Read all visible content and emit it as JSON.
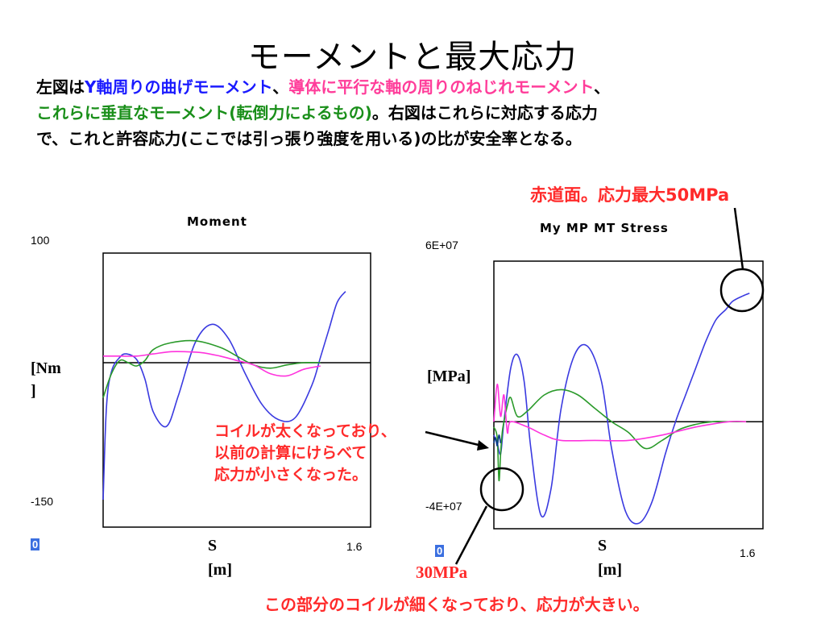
{
  "slide": {
    "title": "モーメントと最大応力",
    "intro": {
      "p1_a": "左図は",
      "p1_b": "Y軸周りの曲げモーメント",
      "p1_c": "、",
      "p1_d": "導体に平行な軸の周りのねじれモーメント",
      "p1_e": "、",
      "p2_a": "これらに垂直なモーメント(転倒力によるもの)",
      "p2_b": "。右図はこれらに対応する応力",
      "p3": "で、これと許容応力(ここでは引っ張り強度を用いる)の比が安全率となる。"
    },
    "annotations": {
      "top_right": "赤道面。応力最大50MPa",
      "mid_line1": "コイルが太くなっており、",
      "mid_line2": "以前の計算にけらべて",
      "mid_line3": "応力が小さくなった。",
      "low_value": "30MPa",
      "bottom": "この部分のコイルが細くなっており、応力が大きい。"
    },
    "colors": {
      "series_blue": "#3a3ae0",
      "series_green": "#2a9a2a",
      "series_pink": "#ff33dd",
      "annotation_red": "#ff2a2a"
    }
  },
  "chart_data": [
    {
      "type": "line",
      "title": "Moment",
      "xlabel_line1": "S",
      "xlabel_line2": "[m]",
      "ylabel_line1": "[Nm",
      "ylabel_line2": "]",
      "y_top_label": "100",
      "y_bottom_label": "-150",
      "x_left_label": "0",
      "x_right_label": "1.6",
      "xlim": [
        0,
        1.6
      ],
      "ylim": [
        -150,
        100
      ],
      "series": [
        {
          "color": "#3a3ae0",
          "x": [
            0.0,
            0.02,
            0.05,
            0.1,
            0.14,
            0.2,
            0.25,
            0.3,
            0.38,
            0.45,
            0.55,
            0.65,
            0.75,
            0.85,
            0.95,
            1.05,
            1.15,
            1.25,
            1.3,
            1.35,
            1.4,
            1.45
          ],
          "values": [
            -125,
            -40,
            -8,
            5,
            8,
            3,
            -15,
            -45,
            -58,
            -30,
            18,
            35,
            22,
            -10,
            -38,
            -52,
            -50,
            -20,
            5,
            30,
            55,
            65
          ]
        },
        {
          "color": "#2a9a2a",
          "x": [
            0.0,
            0.05,
            0.1,
            0.15,
            0.2,
            0.25,
            0.3,
            0.4,
            0.55,
            0.7,
            0.8,
            0.9,
            1.0,
            1.1,
            1.2,
            1.3
          ],
          "values": [
            -32,
            -10,
            2,
            0,
            -3,
            2,
            12,
            18,
            20,
            14,
            6,
            -2,
            -5,
            -2,
            0,
            0
          ]
        },
        {
          "color": "#ff33dd",
          "x": [
            0.0,
            0.1,
            0.2,
            0.3,
            0.4,
            0.5,
            0.6,
            0.7,
            0.8,
            0.9,
            1.0,
            1.1,
            1.2,
            1.3
          ],
          "values": [
            6,
            6,
            6,
            8,
            10,
            10,
            9,
            6,
            2,
            -2,
            -10,
            -12,
            -6,
            -3
          ]
        }
      ]
    },
    {
      "type": "line",
      "title": "My MP MT Stress",
      "xlabel_line1": "S",
      "xlabel_line2": "[m]",
      "ylabel": "[MPa]",
      "y_top_label": "6E+07",
      "y_bottom_label": "-4E+07",
      "x_left_label": "0",
      "x_right_label": "1.6",
      "xlim": [
        0,
        1.6
      ],
      "ylim": [
        -40000000,
        60000000
      ],
      "series": [
        {
          "color": "#3a3ae0",
          "x": [
            0.0,
            0.02,
            0.04,
            0.06,
            0.1,
            0.14,
            0.18,
            0.22,
            0.28,
            0.34,
            0.4,
            0.48,
            0.56,
            0.64,
            0.7,
            0.78,
            0.86,
            0.94,
            1.02,
            1.08,
            1.14,
            1.2,
            1.26,
            1.32,
            1.38,
            1.42,
            1.48,
            1.52
          ],
          "values": [
            -5000000,
            -8000000,
            -12000000,
            0,
            20000000,
            25000000,
            15000000,
            -10000000,
            -35000000,
            -25000000,
            5000000,
            25000000,
            28000000,
            15000000,
            -10000000,
            -33000000,
            -38000000,
            -30000000,
            -12000000,
            0,
            10000000,
            20000000,
            30000000,
            38000000,
            42000000,
            45000000,
            47000000,
            48000000
          ]
        },
        {
          "color": "#2a9a2a",
          "x": [
            0.0,
            0.02,
            0.03,
            0.04,
            0.05,
            0.06,
            0.08,
            0.1,
            0.14,
            0.2,
            0.3,
            0.4,
            0.5,
            0.6,
            0.7,
            0.8,
            0.9,
            1.0,
            1.1,
            1.2,
            1.3,
            1.4,
            1.5
          ],
          "values": [
            -2000000,
            -6000000,
            -22000000,
            -12000000,
            -4000000,
            0,
            6000000,
            9000000,
            2000000,
            4000000,
            10000000,
            12000000,
            10000000,
            5000000,
            0,
            -4000000,
            -10000000,
            -7000000,
            -3000000,
            -1000000,
            0,
            0,
            0
          ]
        },
        {
          "color": "#ff33dd",
          "x": [
            0.0,
            0.02,
            0.04,
            0.06,
            0.08,
            0.1,
            0.2,
            0.3,
            0.4,
            0.6,
            0.8,
            1.0,
            1.2,
            1.4,
            1.5
          ],
          "values": [
            0,
            14000000,
            2000000,
            10000000,
            -4000000,
            0,
            -2000000,
            -5000000,
            -7000000,
            -7000000,
            -7000000,
            -5000000,
            -2000000,
            0,
            0
          ]
        },
        {
          "color": "#0a3a8a",
          "x": [
            0.0,
            0.01,
            0.02,
            0.03,
            0.04
          ],
          "values": [
            -8000000,
            -6000000,
            -9000000,
            -5000000,
            -8000000
          ]
        }
      ]
    }
  ]
}
